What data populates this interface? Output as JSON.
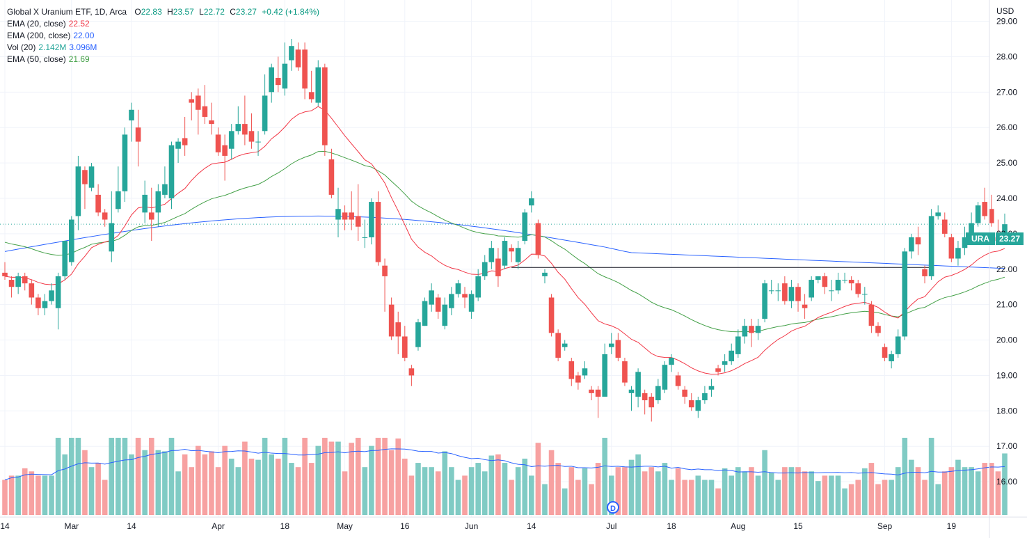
{
  "header": {
    "name": "Global X Uranium ETF, 1D, Arca",
    "ohlc": [
      {
        "key": "O",
        "value": "22.83"
      },
      {
        "key": "H",
        "value": "23.57"
      },
      {
        "key": "L",
        "value": "22.72"
      },
      {
        "key": "C",
        "value": "23.27"
      }
    ],
    "change": "+0.42 (+1.84%)"
  },
  "indicators": [
    {
      "label": "EMA (20, close)",
      "values": [
        "22.52"
      ],
      "colors": [
        "#f23645"
      ]
    },
    {
      "label": "EMA (200, close)",
      "values": [
        "22.00"
      ],
      "colors": [
        "#2962ff"
      ]
    },
    {
      "label": "Vol (20)",
      "values": [
        "2.142M",
        "3.096M"
      ],
      "colors": [
        "#26a69a",
        "#2962ff"
      ]
    },
    {
      "label": "EMA (50, close)",
      "values": [
        "21.69"
      ],
      "colors": [
        "#43a047"
      ]
    }
  ],
  "currency": "USD",
  "last_price_symbol": "URA",
  "last_price_value": "23.27",
  "event_badge": "D",
  "colors": {
    "up": "#26a69a",
    "down": "#ef5350",
    "vol_up": "#80cbc4",
    "vol_down": "#f7a1a1",
    "ema20": "#f23645",
    "ema200": "#2962ff",
    "ema50": "#43a047"
  },
  "chart_data": {
    "type": "candlestick",
    "y_ticks": [
      "29.00",
      "28.00",
      "27.00",
      "26.00",
      "25.00",
      "24.00",
      "23.00",
      "22.00",
      "21.00",
      "20.00",
      "19.00",
      "18.00",
      "17.00",
      "16.00"
    ],
    "ylim": [
      15.0,
      29.6
    ],
    "x_ticks": [
      {
        "label": "14",
        "i": 0
      },
      {
        "label": "Mar",
        "i": 10
      },
      {
        "label": "14",
        "i": 19
      },
      {
        "label": "Apr",
        "i": 32
      },
      {
        "label": "18",
        "i": 42
      },
      {
        "label": "May",
        "i": 51
      },
      {
        "label": "16",
        "i": 60
      },
      {
        "label": "Jun",
        "i": 70
      },
      {
        "label": "14",
        "i": 79
      },
      {
        "label": "Jul",
        "i": 91
      },
      {
        "label": "18",
        "i": 100
      },
      {
        "label": "Aug",
        "i": 110
      },
      {
        "label": "15",
        "i": 119
      },
      {
        "label": "Sep",
        "i": 132
      },
      {
        "label": "19",
        "i": 142
      }
    ],
    "horizontal_line": {
      "value": 22.05,
      "from_i": 76,
      "to_i": 139
    },
    "candles": [
      [
        21.9,
        21.8,
        22.2,
        21.7
      ],
      [
        21.7,
        21.5,
        21.8,
        21.2
      ],
      [
        21.5,
        21.8,
        21.9,
        21.3
      ],
      [
        21.8,
        21.6,
        21.9,
        21.4
      ],
      [
        21.6,
        21.2,
        21.7,
        21.0
      ],
      [
        21.2,
        20.9,
        21.3,
        20.7
      ],
      [
        20.9,
        21.1,
        21.3,
        20.7
      ],
      [
        21.1,
        21.4,
        21.6,
        21.0
      ],
      [
        20.9,
        21.8,
        21.9,
        20.3
      ],
      [
        21.8,
        22.8,
        22.8,
        21.7
      ],
      [
        22.2,
        23.4,
        23.5,
        22.1
      ],
      [
        23.5,
        24.9,
        25.2,
        23.1
      ],
      [
        24.8,
        24.4,
        24.9,
        23.7
      ],
      [
        24.3,
        24.9,
        25.0,
        24.2
      ],
      [
        24.1,
        23.6,
        24.4,
        23.5
      ],
      [
        23.6,
        23.4,
        23.7,
        23.2
      ],
      [
        22.5,
        23.3,
        24.2,
        22.2
      ],
      [
        23.7,
        24.2,
        24.9,
        23.6
      ],
      [
        24.2,
        25.8,
        26.0,
        23.9
      ],
      [
        26.2,
        26.5,
        26.7,
        25.6
      ],
      [
        26.0,
        25.6,
        26.5,
        24.9
      ],
      [
        23.6,
        24.1,
        24.5,
        23.3
      ],
      [
        23.6,
        23.4,
        24.3,
        22.8
      ],
      [
        23.6,
        24.2,
        24.4,
        23.2
      ],
      [
        24.1,
        24.4,
        24.9,
        24.0
      ],
      [
        24.0,
        25.5,
        25.6,
        23.7
      ],
      [
        25.4,
        25.6,
        25.7,
        25.0
      ],
      [
        25.7,
        25.5,
        26.3,
        25.2
      ],
      [
        26.8,
        26.7,
        27.0,
        26.2
      ],
      [
        26.9,
        26.5,
        27.1,
        25.8
      ],
      [
        26.6,
        26.3,
        27.2,
        26.1
      ],
      [
        26.2,
        26.1,
        26.7,
        25.8
      ],
      [
        25.8,
        25.3,
        26.0,
        25.2
      ],
      [
        25.5,
        25.2,
        25.8,
        24.5
      ],
      [
        25.4,
        25.9,
        26.1,
        25.1
      ],
      [
        25.9,
        26.1,
        26.6,
        25.8
      ],
      [
        26.1,
        25.8,
        26.9,
        25.5
      ],
      [
        25.9,
        25.6,
        26.4,
        25.4
      ],
      [
        25.6,
        25.6,
        25.9,
        25.2
      ],
      [
        25.9,
        26.9,
        27.5,
        25.8
      ],
      [
        27.0,
        27.7,
        27.8,
        26.7
      ],
      [
        27.4,
        27.2,
        28.0,
        27.0
      ],
      [
        27.1,
        27.8,
        28.4,
        26.9
      ],
      [
        27.9,
        28.3,
        28.5,
        27.6
      ],
      [
        28.2,
        27.7,
        28.4,
        27.6
      ],
      [
        28.2,
        27.1,
        28.4,
        26.8
      ],
      [
        27.0,
        26.8,
        27.6,
        26.7
      ],
      [
        26.7,
        27.7,
        27.9,
        26.6
      ],
      [
        27.7,
        25.5,
        27.8,
        25.2
      ],
      [
        25.1,
        24.1,
        25.4,
        24.0
      ],
      [
        23.4,
        23.7,
        24.3,
        22.9
      ],
      [
        23.6,
        23.4,
        23.8,
        23.1
      ],
      [
        23.6,
        23.4,
        24.2,
        23.1
      ],
      [
        23.5,
        23.2,
        24.4,
        22.8
      ],
      [
        22.9,
        22.9,
        23.4,
        22.6
      ],
      [
        22.9,
        23.9,
        24.0,
        22.7
      ],
      [
        23.9,
        22.2,
        24.2,
        22.1
      ],
      [
        22.1,
        21.8,
        22.3,
        20.8
      ],
      [
        21.0,
        20.1,
        21.2,
        20.0
      ],
      [
        20.5,
        20.1,
        20.8,
        19.6
      ],
      [
        20.1,
        19.5,
        20.4,
        19.4
      ],
      [
        19.2,
        19.0,
        19.3,
        18.7
      ],
      [
        19.8,
        20.5,
        20.6,
        19.7
      ],
      [
        20.4,
        21.1,
        21.2,
        20.4
      ],
      [
        21.0,
        21.4,
        21.6,
        20.8
      ],
      [
        21.2,
        20.8,
        21.3,
        20.6
      ],
      [
        20.4,
        21.0,
        21.2,
        20.3
      ],
      [
        20.9,
        21.3,
        21.5,
        20.7
      ],
      [
        21.3,
        21.6,
        21.7,
        21.2
      ],
      [
        21.3,
        21.2,
        21.5,
        20.9
      ],
      [
        20.8,
        21.3,
        21.4,
        20.6
      ],
      [
        21.2,
        21.8,
        22.0,
        21.1
      ],
      [
        21.8,
        22.2,
        22.4,
        21.7
      ],
      [
        22.2,
        22.6,
        22.8,
        22.0
      ],
      [
        22.3,
        21.8,
        22.6,
        21.5
      ],
      [
        22.1,
        22.8,
        22.9,
        22.0
      ],
      [
        22.6,
        22.5,
        22.7,
        22.2
      ],
      [
        22.2,
        22.6,
        22.8,
        22.0
      ],
      [
        22.8,
        23.6,
        23.7,
        22.7
      ],
      [
        23.8,
        24.0,
        24.2,
        23.6
      ],
      [
        23.3,
        22.4,
        23.4,
        22.3
      ],
      [
        21.8,
        21.9,
        22.0,
        21.6
      ],
      [
        21.2,
        20.2,
        21.3,
        20.1
      ],
      [
        20.2,
        19.5,
        20.3,
        19.4
      ],
      [
        19.8,
        19.9,
        20.0,
        19.7
      ],
      [
        19.4,
        18.9,
        19.5,
        18.7
      ],
      [
        19.0,
        18.8,
        19.1,
        18.6
      ],
      [
        19.0,
        19.2,
        19.4,
        18.9
      ],
      [
        18.6,
        18.5,
        18.7,
        18.3
      ],
      [
        18.6,
        18.4,
        18.7,
        17.8
      ],
      [
        18.4,
        19.6,
        19.9,
        18.4
      ],
      [
        19.8,
        19.9,
        20.2,
        19.6
      ],
      [
        20.0,
        19.5,
        20.2,
        19.4
      ],
      [
        19.4,
        18.8,
        19.5,
        18.7
      ],
      [
        18.5,
        18.6,
        18.7,
        18.0
      ],
      [
        18.4,
        19.1,
        19.2,
        18.1
      ],
      [
        18.5,
        18.3,
        18.6,
        17.9
      ],
      [
        18.4,
        18.1,
        18.5,
        17.7
      ],
      [
        18.3,
        18.7,
        18.9,
        18.2
      ],
      [
        18.6,
        19.3,
        19.4,
        18.5
      ],
      [
        19.3,
        19.5,
        19.6,
        19.1
      ],
      [
        19.0,
        18.7,
        19.1,
        18.6
      ],
      [
        18.6,
        18.4,
        18.7,
        18.2
      ],
      [
        18.3,
        18.1,
        18.5,
        18.0
      ],
      [
        18.0,
        18.3,
        18.4,
        17.8
      ],
      [
        18.3,
        18.5,
        18.7,
        18.2
      ],
      [
        18.6,
        18.7,
        18.9,
        18.4
      ],
      [
        19.2,
        19.1,
        19.3,
        19.0
      ],
      [
        19.3,
        19.4,
        19.6,
        19.1
      ],
      [
        19.4,
        19.7,
        19.9,
        19.3
      ],
      [
        19.6,
        20.1,
        20.3,
        19.5
      ],
      [
        20.1,
        20.4,
        20.6,
        19.9
      ],
      [
        20.4,
        20.2,
        20.6,
        19.8
      ],
      [
        20.2,
        20.4,
        20.6,
        20.0
      ],
      [
        20.6,
        21.6,
        21.7,
        20.5
      ],
      [
        21.4,
        21.4,
        21.7,
        21.3
      ],
      [
        21.4,
        21.4,
        21.6,
        21.1
      ],
      [
        21.6,
        21.1,
        21.8,
        21.0
      ],
      [
        21.1,
        21.5,
        21.7,
        20.9
      ],
      [
        21.5,
        21.1,
        21.6,
        20.8
      ],
      [
        21.0,
        20.9,
        21.3,
        20.6
      ],
      [
        21.2,
        21.7,
        21.8,
        21.1
      ],
      [
        21.7,
        21.8,
        21.8,
        21.6
      ],
      [
        21.8,
        21.5,
        21.9,
        21.3
      ],
      [
        21.4,
        21.4,
        21.7,
        21.1
      ],
      [
        21.4,
        21.7,
        21.9,
        21.3
      ],
      [
        21.7,
        21.7,
        21.9,
        21.6
      ],
      [
        21.7,
        21.6,
        21.8,
        21.4
      ],
      [
        21.6,
        21.3,
        21.7,
        21.2
      ],
      [
        21.3,
        21.3,
        21.5,
        21.0
      ],
      [
        21.0,
        20.4,
        21.1,
        20.2
      ],
      [
        20.4,
        20.2,
        20.5,
        20.1
      ],
      [
        19.8,
        19.5,
        19.9,
        19.4
      ],
      [
        19.4,
        19.6,
        19.7,
        19.2
      ],
      [
        19.6,
        20.1,
        20.3,
        19.5
      ],
      [
        20.1,
        22.5,
        22.6,
        20.0
      ],
      [
        22.5,
        22.9,
        23.0,
        22.3
      ],
      [
        22.9,
        22.7,
        23.2,
        22.4
      ],
      [
        22.0,
        21.8,
        22.1,
        21.6
      ],
      [
        21.8,
        23.5,
        23.7,
        21.7
      ],
      [
        23.5,
        23.6,
        23.8,
        23.4
      ],
      [
        23.4,
        23.0,
        23.6,
        22.9
      ],
      [
        22.9,
        22.3,
        23.0,
        22.2
      ],
      [
        22.3,
        22.6,
        22.8,
        22.1
      ],
      [
        22.6,
        22.9,
        23.2,
        22.4
      ],
      [
        22.9,
        23.3,
        23.6,
        22.8
      ],
      [
        23.3,
        23.8,
        23.9,
        23.2
      ],
      [
        23.9,
        23.5,
        24.3,
        23.4
      ],
      [
        23.7,
        23.3,
        24.1,
        23.2
      ],
      [
        22.9,
        22.8,
        23.4,
        22.7
      ],
      [
        22.83,
        23.27,
        23.57,
        22.72
      ]
    ],
    "volume_scale_max": 100,
    "volume": [],
    "ema20": [],
    "ema50": [],
    "ema200": []
  }
}
